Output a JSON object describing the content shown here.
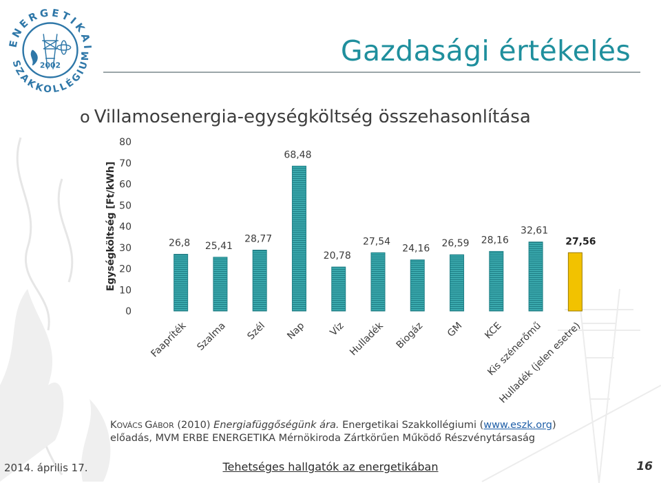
{
  "logo": {
    "ring_text": "ENERGETIKAI SZAKKOLLÉGIUM",
    "year": "2002"
  },
  "title": "Gazdasági értékelés",
  "bullet": {
    "marker": "o",
    "text": "Villamosenergia-egységköltség összehasonlítása"
  },
  "colors": {
    "title": "#1f8f9d",
    "bar": "#2f9ba0",
    "highlight_bar": "#f2c200"
  },
  "chart_data": {
    "type": "bar",
    "categories": [
      "Faapríték",
      "Szalma",
      "Szél",
      "Nap",
      "Víz",
      "Hulladék",
      "Biogáz",
      "GM",
      "KCE",
      "Kis szénerőmű",
      "Hulladék (jelen esetre)"
    ],
    "values": [
      26.8,
      25.41,
      28.77,
      68.48,
      20.78,
      27.54,
      24.16,
      26.59,
      28.16,
      32.61,
      27.56
    ],
    "value_labels": [
      "26,8",
      "25,41",
      "28,77",
      "68,48",
      "20,78",
      "27,54",
      "24,16",
      "26,59",
      "28,16",
      "32,61",
      "27,56"
    ],
    "highlight_index": 10,
    "ylabel": "Egységköltség [Ft/kWh]",
    "ylim": [
      0,
      80
    ],
    "yticks": [
      0,
      10,
      20,
      30,
      40,
      50,
      60,
      70,
      80
    ],
    "grid": false
  },
  "citation": {
    "author_K": "K",
    "author_rest1": "OVÁCS ",
    "author_G": "G",
    "author_rest2": "ÁBOR",
    "year": " (2010) ",
    "work": "Energiafüggőségünk ára.",
    "rest": " Energetikai Szakkollégiumi (",
    "url": "www.eszk.org",
    "close": ")",
    "line2": "előadás, MVM ERBE ENERGETIKA Mérnökiroda Zártkörűen Működő Részvénytársaság"
  },
  "footer": {
    "date": "2014. április 17.",
    "center": "Tehetséges hallgatók az energetikában",
    "page": "16"
  }
}
